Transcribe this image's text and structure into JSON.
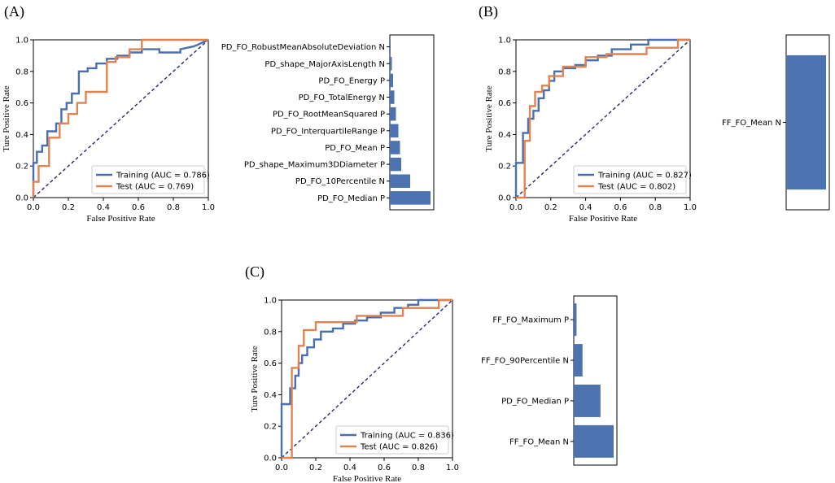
{
  "colors": {
    "training": "#4a6fb1",
    "test": "#dd8452",
    "chance": "#1f2a6b",
    "bar": "#4c72b0",
    "axis": "#000000"
  },
  "chart_data": [
    {
      "panel": "(A)",
      "type": "line",
      "subtype": "roc",
      "xlabel": "False Positive Rate",
      "ylabel": "Ture Positive Rate",
      "xlim": [
        0,
        1
      ],
      "ylim": [
        0,
        1
      ],
      "xticks": [
        "0.0",
        "0.2",
        "0.4",
        "0.6",
        "0.8",
        "1.0"
      ],
      "yticks": [
        "0.0",
        "0.2",
        "0.4",
        "0.6",
        "0.8",
        "1.0"
      ],
      "legend_position": "lower-right",
      "series": [
        {
          "name": "Training (AUC = 0.786)",
          "color_key": "training",
          "x": [
            0,
            0,
            0.02,
            0.02,
            0.05,
            0.05,
            0.08,
            0.08,
            0.13,
            0.13,
            0.16,
            0.16,
            0.19,
            0.19,
            0.22,
            0.22,
            0.26,
            0.26,
            0.31,
            0.31,
            0.36,
            0.36,
            0.42,
            0.42,
            0.48,
            0.48,
            0.55,
            0.55,
            0.62,
            0.62,
            0.72,
            0.72,
            0.84,
            0.84,
            0.92,
            1.0
          ],
          "y": [
            0,
            0.22,
            0.22,
            0.29,
            0.29,
            0.33,
            0.33,
            0.42,
            0.42,
            0.47,
            0.47,
            0.56,
            0.56,
            0.6,
            0.6,
            0.66,
            0.66,
            0.8,
            0.8,
            0.82,
            0.82,
            0.85,
            0.85,
            0.88,
            0.88,
            0.9,
            0.9,
            0.92,
            0.92,
            0.94,
            0.94,
            0.92,
            0.92,
            0.94,
            0.96,
            1.0
          ]
        },
        {
          "name": "Test (AUC = 0.769)",
          "color_key": "test",
          "x": [
            0,
            0,
            0.03,
            0.03,
            0.09,
            0.09,
            0.15,
            0.15,
            0.2,
            0.2,
            0.25,
            0.25,
            0.3,
            0.3,
            0.42,
            0.42,
            0.47,
            0.47,
            0.55,
            0.55,
            0.62,
            0.62,
            1.0
          ],
          "y": [
            0,
            0.1,
            0.1,
            0.2,
            0.2,
            0.38,
            0.38,
            0.47,
            0.47,
            0.53,
            0.53,
            0.6,
            0.6,
            0.67,
            0.67,
            0.86,
            0.86,
            0.89,
            0.89,
            0.94,
            0.94,
            1.0,
            1.0
          ]
        }
      ]
    },
    {
      "panel": "(A)",
      "type": "bar",
      "orientation": "horizontal",
      "categories": [
        "PD_FO_RobustMeanAbsoluteDeviation N",
        "PD_shape_MajorAxisLength N",
        "PD_FO_Energy P",
        "PD_FO_TotalEnergy N",
        "PD_FO_RootMeanSquared P",
        "PD_FO_InterquartileRange P",
        "PD_FO_Mean P",
        "PD_shape_Maximum3DDiameter P",
        "PD_FO_10Percentile N",
        "PD_FO_Median P"
      ],
      "values": [
        0.02,
        0.05,
        0.08,
        0.11,
        0.15,
        0.21,
        0.25,
        0.28,
        0.5,
        1.0
      ]
    },
    {
      "panel": "(B)",
      "type": "line",
      "subtype": "roc",
      "xlabel": "False Positive Rate",
      "ylabel": "Ture Positive Rate",
      "xlim": [
        0,
        1
      ],
      "ylim": [
        0,
        1
      ],
      "xticks": [
        "0.0",
        "0.2",
        "0.4",
        "0.6",
        "0.8",
        "1.0"
      ],
      "yticks": [
        "0.0",
        "0.2",
        "0.4",
        "0.6",
        "0.8",
        "1.0"
      ],
      "legend_position": "lower-right",
      "series": [
        {
          "name": "Training (AUC = 0.827)",
          "color_key": "training",
          "x": [
            0,
            0,
            0.04,
            0.04,
            0.07,
            0.07,
            0.1,
            0.1,
            0.13,
            0.13,
            0.16,
            0.16,
            0.19,
            0.19,
            0.22,
            0.22,
            0.27,
            0.27,
            0.34,
            0.34,
            0.4,
            0.4,
            0.47,
            0.47,
            0.55,
            0.55,
            0.66,
            0.66,
            0.76,
            0.76,
            1.0
          ],
          "y": [
            0,
            0.22,
            0.22,
            0.41,
            0.41,
            0.5,
            0.5,
            0.55,
            0.55,
            0.63,
            0.63,
            0.68,
            0.68,
            0.74,
            0.74,
            0.8,
            0.8,
            0.82,
            0.82,
            0.84,
            0.84,
            0.87,
            0.87,
            0.9,
            0.9,
            0.94,
            0.94,
            0.97,
            0.97,
            1.0,
            1.0
          ]
        },
        {
          "name": "Test (AUC = 0.802)",
          "color_key": "test",
          "x": [
            0,
            0.05,
            0.05,
            0.08,
            0.08,
            0.11,
            0.11,
            0.15,
            0.15,
            0.19,
            0.19,
            0.27,
            0.27,
            0.4,
            0.4,
            0.52,
            0.52,
            0.75,
            0.75,
            0.93,
            0.93,
            1.0
          ],
          "y": [
            0,
            0.0,
            0.36,
            0.36,
            0.58,
            0.58,
            0.67,
            0.67,
            0.71,
            0.71,
            0.77,
            0.77,
            0.83,
            0.83,
            0.89,
            0.89,
            0.91,
            0.91,
            0.95,
            0.95,
            1.0,
            1.0
          ]
        }
      ]
    },
    {
      "panel": "(B)",
      "type": "bar",
      "orientation": "horizontal",
      "categories": [
        "FF_FO_Mean N"
      ],
      "values": [
        1.0
      ]
    },
    {
      "panel": "(C)",
      "type": "line",
      "subtype": "roc",
      "xlabel": "False Positive Rate",
      "ylabel": "Ture Positive Rate",
      "xlim": [
        0,
        1
      ],
      "ylim": [
        0,
        1
      ],
      "xticks": [
        "0.0",
        "0.2",
        "0.4",
        "0.6",
        "0.8",
        "1.0"
      ],
      "yticks": [
        "0.0",
        "0.2",
        "0.4",
        "0.6",
        "0.8",
        "1.0"
      ],
      "legend_position": "lower-right",
      "series": [
        {
          "name": "Training (AUC = 0.836)",
          "color_key": "training",
          "x": [
            0,
            0,
            0.05,
            0.05,
            0.08,
            0.08,
            0.1,
            0.1,
            0.12,
            0.12,
            0.15,
            0.15,
            0.19,
            0.19,
            0.23,
            0.23,
            0.3,
            0.3,
            0.36,
            0.36,
            0.43,
            0.43,
            0.5,
            0.5,
            0.58,
            0.58,
            0.66,
            0.66,
            0.74,
            0.74,
            0.8,
            0.8,
            0.9,
            1.0
          ],
          "y": [
            0,
            0.34,
            0.34,
            0.44,
            0.44,
            0.52,
            0.52,
            0.6,
            0.6,
            0.65,
            0.65,
            0.7,
            0.7,
            0.75,
            0.75,
            0.8,
            0.8,
            0.82,
            0.82,
            0.85,
            0.85,
            0.87,
            0.87,
            0.89,
            0.89,
            0.92,
            0.92,
            0.95,
            0.95,
            0.97,
            0.97,
            1.0,
            1.0,
            1.0
          ]
        },
        {
          "name": "Test (AUC = 0.826)",
          "color_key": "test",
          "x": [
            0,
            0.06,
            0.06,
            0.1,
            0.1,
            0.13,
            0.13,
            0.2,
            0.2,
            0.44,
            0.44,
            0.71,
            0.71,
            0.92,
            0.92,
            1.0
          ],
          "y": [
            0,
            0.0,
            0.57,
            0.57,
            0.71,
            0.71,
            0.81,
            0.81,
            0.86,
            0.86,
            0.9,
            0.9,
            0.95,
            0.95,
            1.0,
            1.0
          ]
        }
      ]
    },
    {
      "panel": "(C)",
      "type": "bar",
      "orientation": "horizontal",
      "categories": [
        "FF_FO_Maximum P",
        "FF_FO_90Percentile N",
        "PD_FO_Median P",
        "FF_FO_Mean N"
      ],
      "values": [
        0.07,
        0.22,
        0.67,
        1.0
      ]
    }
  ]
}
